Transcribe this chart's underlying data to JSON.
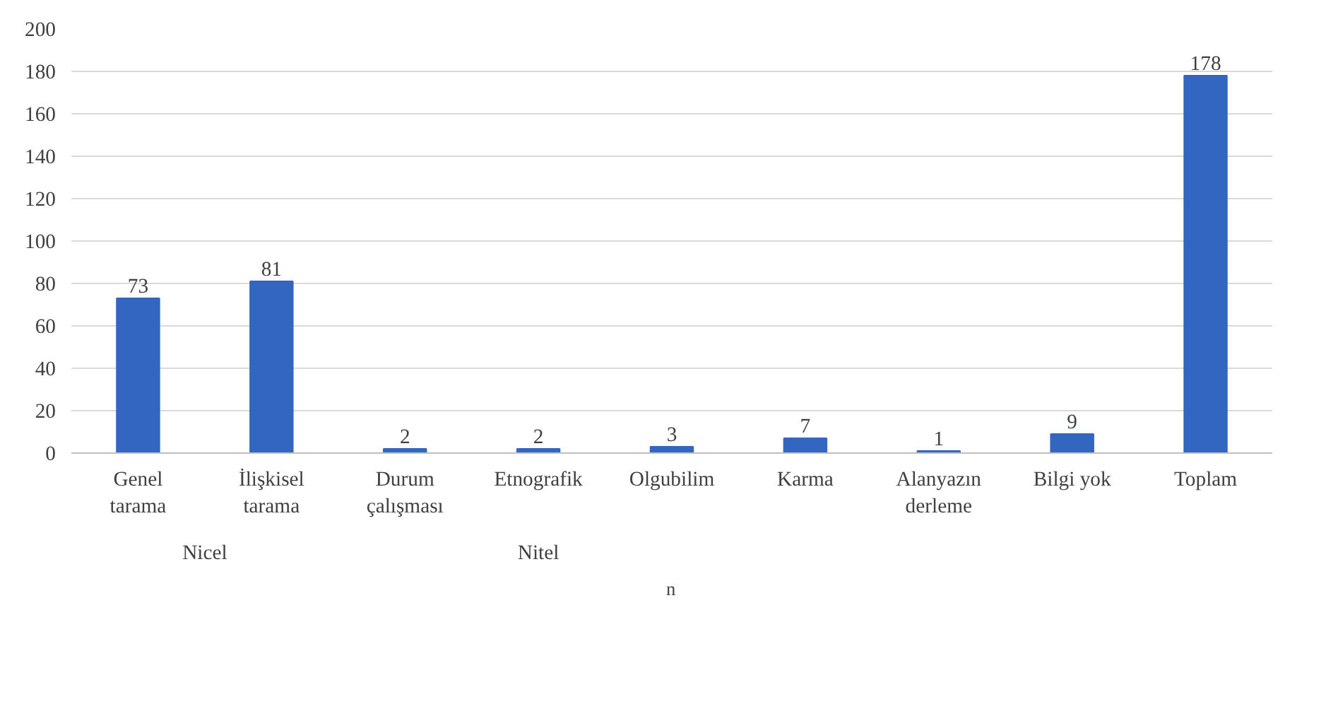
{
  "chart_data": {
    "type": "bar",
    "categories": [
      "Genel tarama",
      "İlişkisel tarama",
      "Durum çalışması",
      "Etnografik",
      "Olgubilim",
      "Karma",
      "Alanyazın derleme",
      "Bilgi yok",
      "Toplam"
    ],
    "series": [
      {
        "name": "n",
        "color": "#3366c0",
        "values": [
          73,
          81,
          2,
          2,
          3,
          7,
          1,
          9,
          178
        ]
      }
    ],
    "annotations": [
      "Nicel",
      "Nitel"
    ],
    "ylim": [
      0,
      200
    ],
    "yticks": [
      0,
      20,
      40,
      60,
      80,
      100,
      120,
      140,
      160,
      180,
      200
    ],
    "grid": "y",
    "legend": "bottom",
    "data_labels": true
  }
}
